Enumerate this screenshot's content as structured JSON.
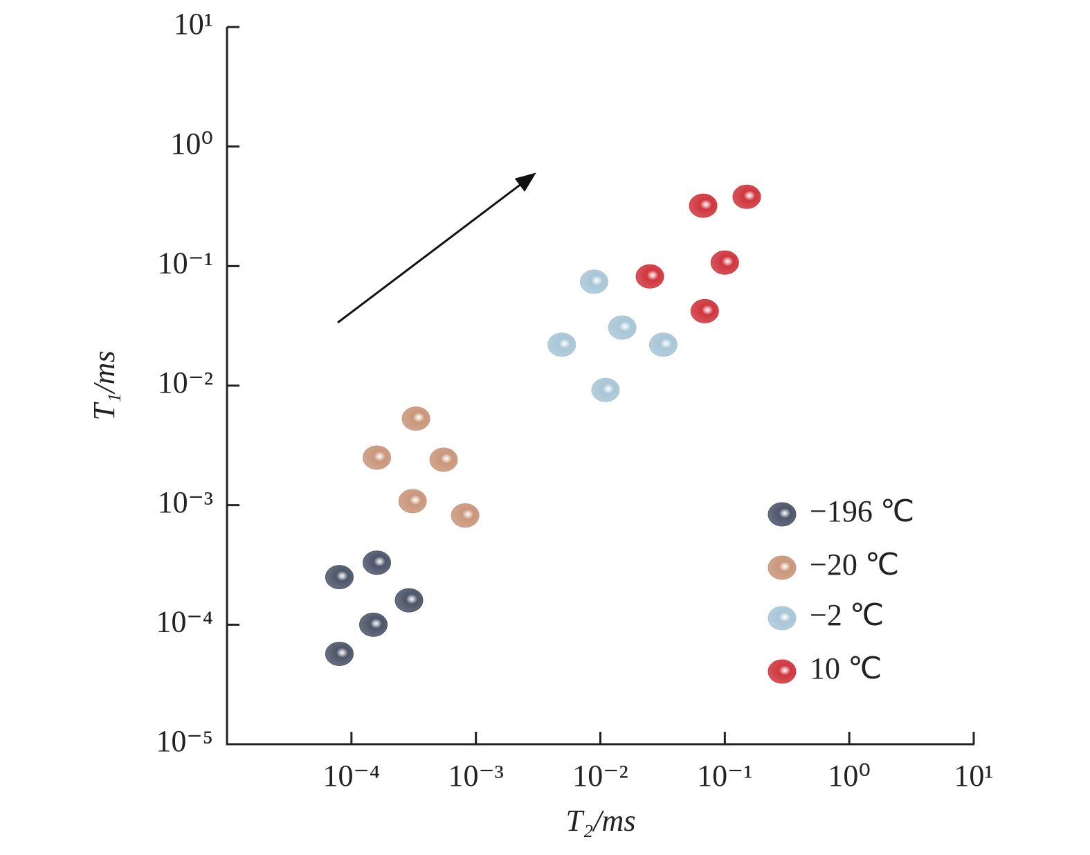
{
  "chart_data": {
    "type": "scatter",
    "x_label": "T₂/ms",
    "y_label": "T₁/ms",
    "xscale": "log",
    "yscale": "log",
    "xlim": [
      1e-05,
      10
    ],
    "ylim": [
      1e-05,
      10
    ],
    "xticks": [
      {
        "value": 0.0001,
        "label": "10⁻⁴"
      },
      {
        "value": 0.001,
        "label": "10⁻³"
      },
      {
        "value": 0.01,
        "label": "10⁻²"
      },
      {
        "value": 0.1,
        "label": "10⁻¹"
      },
      {
        "value": 1,
        "label": "10⁰"
      },
      {
        "value": 10,
        "label": "10¹"
      }
    ],
    "yticks": [
      {
        "value": 1e-05,
        "label": "10⁻⁵"
      },
      {
        "value": 0.0001,
        "label": "10⁻⁴"
      },
      {
        "value": 0.001,
        "label": "10⁻³"
      },
      {
        "value": 0.01,
        "label": "10⁻²"
      },
      {
        "value": 0.1,
        "label": "10⁻¹"
      },
      {
        "value": 1,
        "label": "10⁰"
      },
      {
        "value": 10,
        "label": "10¹"
      }
    ],
    "legend": "lower right",
    "series": [
      {
        "name": "−196 ℃",
        "color": "#4d5669",
        "x": [
          8e-05,
          0.00016,
          0.00029,
          0.00015,
          8e-05
        ],
        "values": [
          0.00025,
          0.00033,
          0.00016,
          0.0001,
          5.7e-05
        ]
      },
      {
        "name": "−20 ℃",
        "color": "#c9967b",
        "x": [
          0.00033,
          0.00016,
          0.00055,
          0.00031,
          0.00082
        ],
        "values": [
          0.0053,
          0.0025,
          0.0024,
          0.00108,
          0.00082
        ]
      },
      {
        "name": "−2 ℃",
        "color": "#a8c6d6",
        "x": [
          0.0089,
          0.015,
          0.0049,
          0.032,
          0.011
        ],
        "values": [
          0.074,
          0.0306,
          0.022,
          0.022,
          0.0092
        ]
      },
      {
        "name": "10 ℃",
        "color": "#d0363e",
        "x": [
          0.067,
          0.15,
          0.025,
          0.1,
          0.069
        ],
        "values": [
          0.32,
          0.38,
          0.082,
          0.107,
          0.042
        ]
      }
    ]
  }
}
